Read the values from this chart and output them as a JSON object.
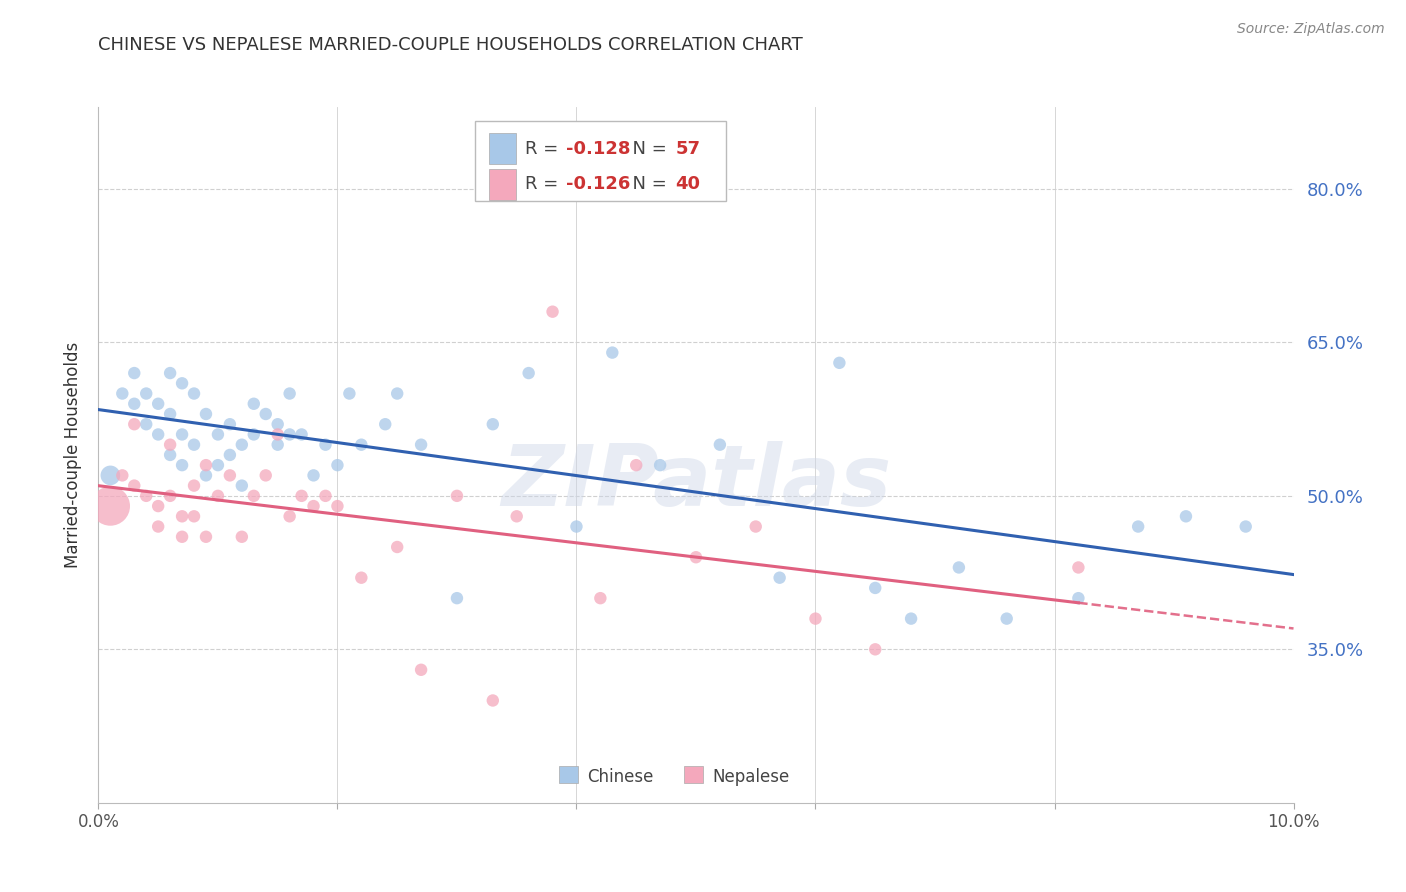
{
  "title": "CHINESE VS NEPALESE MARRIED-COUPLE HOUSEHOLDS CORRELATION CHART",
  "source": "Source: ZipAtlas.com",
  "ylabel": "Married-couple Households",
  "xlim": [
    0.0,
    0.1
  ],
  "ylim": [
    0.2,
    0.88
  ],
  "yticks": [
    0.35,
    0.5,
    0.65,
    0.8
  ],
  "ytick_labels": [
    "35.0%",
    "50.0%",
    "65.0%",
    "80.0%"
  ],
  "xticks": [
    0.0,
    0.02,
    0.04,
    0.06,
    0.08,
    0.1
  ],
  "xtick_labels": [
    "0.0%",
    "",
    "",
    "",
    "",
    "10.0%"
  ],
  "chinese_R": "-0.128",
  "chinese_N": "57",
  "nepalese_R": "-0.126",
  "nepalese_N": "40",
  "chinese_color": "#a8c8e8",
  "nepalese_color": "#f4a8bc",
  "chinese_line_color": "#3060b0",
  "nepalese_line_color": "#e06080",
  "watermark": "ZIPatlas",
  "chinese_x": [
    0.001,
    0.002,
    0.003,
    0.003,
    0.004,
    0.004,
    0.005,
    0.005,
    0.006,
    0.006,
    0.006,
    0.007,
    0.007,
    0.007,
    0.008,
    0.008,
    0.009,
    0.009,
    0.01,
    0.01,
    0.011,
    0.011,
    0.012,
    0.012,
    0.013,
    0.013,
    0.014,
    0.015,
    0.015,
    0.016,
    0.016,
    0.017,
    0.018,
    0.019,
    0.02,
    0.021,
    0.022,
    0.024,
    0.025,
    0.027,
    0.03,
    0.033,
    0.036,
    0.04,
    0.043,
    0.047,
    0.052,
    0.057,
    0.062,
    0.065,
    0.068,
    0.072,
    0.076,
    0.082,
    0.087,
    0.091,
    0.096
  ],
  "chinese_y": [
    0.52,
    0.6,
    0.59,
    0.62,
    0.6,
    0.57,
    0.59,
    0.56,
    0.62,
    0.58,
    0.54,
    0.61,
    0.56,
    0.53,
    0.6,
    0.55,
    0.58,
    0.52,
    0.56,
    0.53,
    0.57,
    0.54,
    0.55,
    0.51,
    0.59,
    0.56,
    0.58,
    0.55,
    0.57,
    0.56,
    0.6,
    0.56,
    0.52,
    0.55,
    0.53,
    0.6,
    0.55,
    0.57,
    0.6,
    0.55,
    0.4,
    0.57,
    0.62,
    0.47,
    0.64,
    0.53,
    0.55,
    0.42,
    0.63,
    0.41,
    0.38,
    0.43,
    0.38,
    0.4,
    0.47,
    0.48,
    0.47
  ],
  "chinese_size": [
    200,
    80,
    80,
    80,
    80,
    80,
    80,
    80,
    80,
    80,
    80,
    80,
    80,
    80,
    80,
    80,
    80,
    80,
    80,
    80,
    80,
    80,
    80,
    80,
    80,
    80,
    80,
    80,
    80,
    80,
    80,
    80,
    80,
    80,
    80,
    80,
    80,
    80,
    80,
    80,
    80,
    80,
    80,
    80,
    80,
    80,
    80,
    80,
    80,
    80,
    80,
    80,
    80,
    80,
    80,
    80,
    80
  ],
  "nepalese_x": [
    0.001,
    0.002,
    0.003,
    0.003,
    0.004,
    0.005,
    0.005,
    0.006,
    0.006,
    0.007,
    0.007,
    0.008,
    0.008,
    0.009,
    0.009,
    0.01,
    0.011,
    0.012,
    0.013,
    0.014,
    0.015,
    0.016,
    0.017,
    0.018,
    0.019,
    0.02,
    0.022,
    0.025,
    0.027,
    0.03,
    0.033,
    0.035,
    0.038,
    0.042,
    0.045,
    0.05,
    0.055,
    0.06,
    0.065,
    0.082
  ],
  "nepalese_y": [
    0.49,
    0.52,
    0.51,
    0.57,
    0.5,
    0.49,
    0.47,
    0.55,
    0.5,
    0.48,
    0.46,
    0.51,
    0.48,
    0.53,
    0.46,
    0.5,
    0.52,
    0.46,
    0.5,
    0.52,
    0.56,
    0.48,
    0.5,
    0.49,
    0.5,
    0.49,
    0.42,
    0.45,
    0.33,
    0.5,
    0.3,
    0.48,
    0.68,
    0.4,
    0.53,
    0.44,
    0.47,
    0.38,
    0.35,
    0.43
  ],
  "nepalese_size": [
    800,
    80,
    80,
    80,
    80,
    80,
    80,
    80,
    80,
    80,
    80,
    80,
    80,
    80,
    80,
    80,
    80,
    80,
    80,
    80,
    80,
    80,
    80,
    80,
    80,
    80,
    80,
    80,
    80,
    80,
    80,
    80,
    80,
    80,
    80,
    80,
    80,
    80,
    80,
    80
  ],
  "background_color": "#ffffff",
  "grid_color": "#d0d0d0"
}
